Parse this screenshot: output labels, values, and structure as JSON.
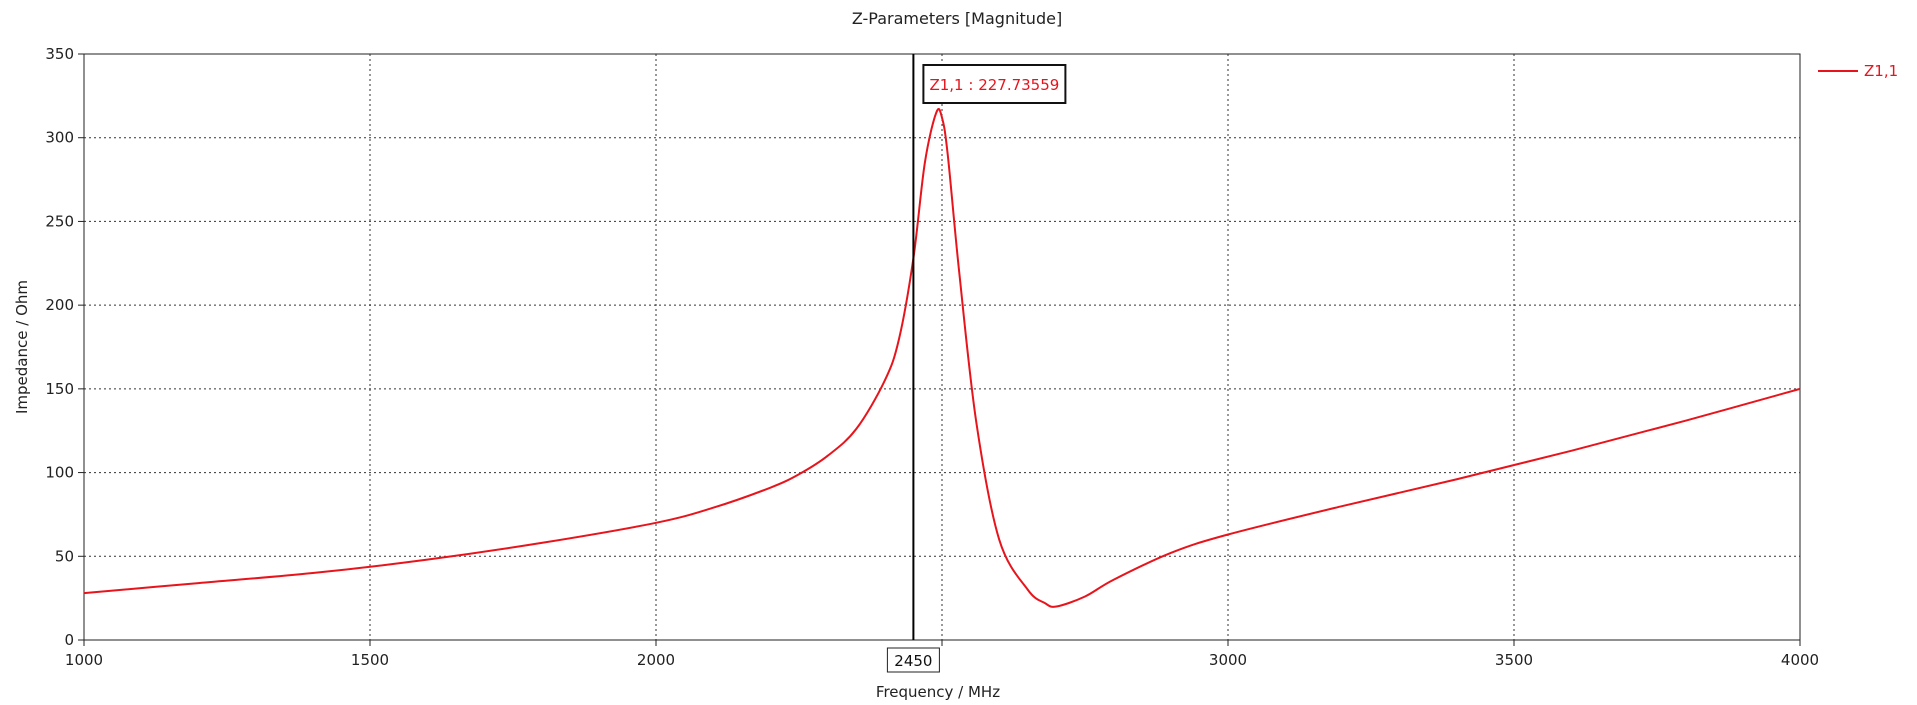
{
  "chart_data": {
    "type": "line",
    "title": "Z-Parameters [Magnitude]",
    "xlabel": "Frequency / MHz",
    "ylabel": "Impedance / Ohm",
    "xlim": [
      1000,
      4000
    ],
    "ylim": [
      0,
      350
    ],
    "xticks": [
      1000,
      1500,
      2000,
      2500,
      3000,
      3500,
      4000
    ],
    "yticks": [
      0,
      50,
      100,
      150,
      200,
      250,
      300,
      350
    ],
    "xtick_labels": [
      "1000",
      "1500",
      "2000",
      "",
      "3000",
      "3500",
      "4000"
    ],
    "ytick_labels": [
      "0",
      "50",
      "100",
      "150",
      "200",
      "250",
      "300",
      "350"
    ],
    "grid": true,
    "legend_position": "top-right",
    "series": [
      {
        "name": "Z1,1",
        "color": "#e8141c",
        "x": [
          1000,
          1200,
          1400,
          1600,
          1800,
          2000,
          2100,
          2200,
          2250,
          2300,
          2350,
          2400,
          2425,
          2450,
          2470,
          2490,
          2500,
          2510,
          2530,
          2560,
          2600,
          2650,
          2680,
          2700,
          2750,
          2800,
          2900,
          3000,
          3200,
          3400,
          3600,
          3800,
          4000
        ],
        "y": [
          28,
          34,
          40,
          48,
          58,
          70,
          79,
          91,
          99,
          110,
          126,
          155,
          180,
          228,
          285,
          315,
          312,
          290,
          220,
          130,
          60,
          30,
          22,
          20,
          26,
          36,
          52,
          63,
          80,
          96,
          113,
          131,
          150
        ]
      }
    ],
    "cursor": {
      "x": 2450,
      "label": "2450"
    },
    "annotation": {
      "series": "Z1,1",
      "text": "Z1,1 : 227.73559",
      "x": 2450,
      "y": 227.73559
    }
  }
}
